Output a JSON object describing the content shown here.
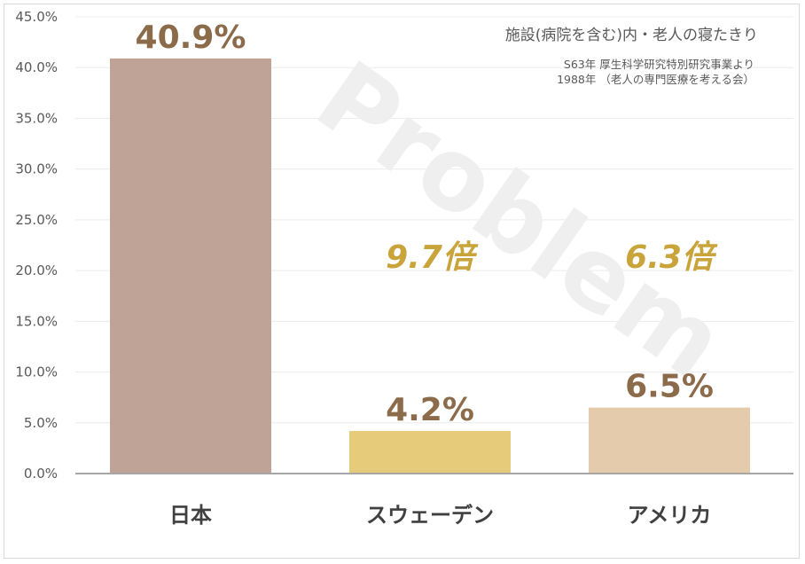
{
  "chart_data": {
    "type": "bar",
    "categories": [
      "日本",
      "スウェーデン",
      "アメリカ"
    ],
    "values": [
      40.9,
      4.2,
      6.5
    ],
    "value_labels": [
      "40.9%",
      "4.2%",
      "6.5%"
    ],
    "bar_colors": [
      "#bfa396",
      "#e6cc7a",
      "#e3cbab"
    ],
    "label_color": "#8b6b4a",
    "multiplier_color": "#c9a43b",
    "multipliers": [
      "",
      "9.7倍",
      "6.3倍"
    ],
    "ylim": [
      0,
      45
    ],
    "yticks": [
      0,
      5,
      10,
      15,
      20,
      25,
      30,
      35,
      40,
      45
    ],
    "ytick_labels": [
      "0.0%",
      "5.0%",
      "10.0%",
      "15.0%",
      "20.0%",
      "25.0%",
      "30.0%",
      "35.0%",
      "40.0%",
      "45.0%"
    ],
    "grid": true,
    "title": "施設(病院を含む)内・老人の寝たきり",
    "source_lines": [
      "S63年 厚生科学研究特別研究事業より",
      "1988年 （老人の専門医療を考える会）"
    ],
    "watermark": "Problem",
    "xlabel": "",
    "ylabel": ""
  }
}
